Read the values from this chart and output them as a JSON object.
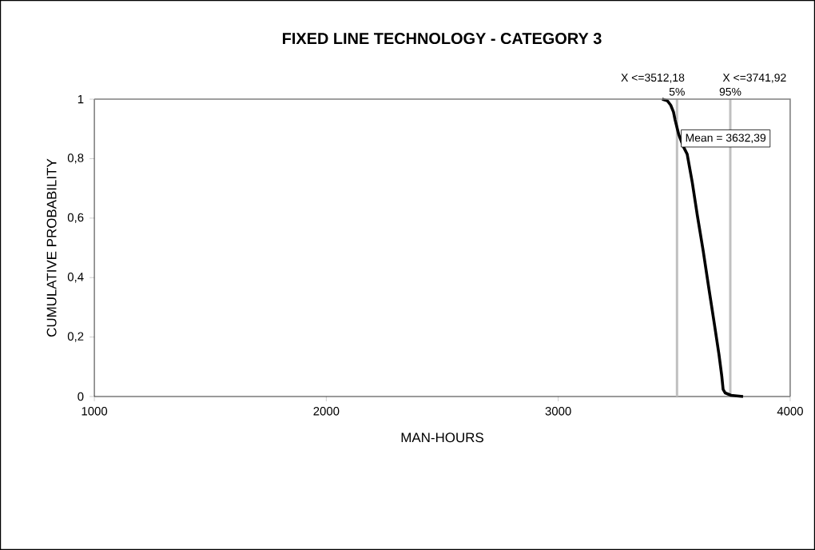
{
  "chart_data": {
    "type": "line",
    "title": "FIXED LINE TECHNOLOGY - CATEGORY 3",
    "xlabel": "MAN-HOURS",
    "ylabel": "CUMULATIVE PROBABILITY",
    "series": [
      {
        "color": "#000000",
        "x": [
          3448,
          3470,
          3485,
          3497,
          3504,
          3520,
          3540,
          3556,
          3578,
          3600,
          3625,
          3649,
          3672,
          3693,
          3705,
          3711,
          3720,
          3745,
          3770,
          3797
        ],
        "values": [
          1,
          0.995,
          0.98,
          0.957,
          0.93,
          0.88,
          0.84,
          0.815,
          0.72,
          0.608,
          0.49,
          0.366,
          0.25,
          0.142,
          0.07,
          0.024,
          0.012,
          0.004,
          0.002,
          0
        ]
      }
    ],
    "xlim": [
      1000,
      4000
    ],
    "ylim": [
      0,
      1
    ],
    "xticks": [
      1000,
      2000,
      3000,
      4000
    ],
    "yticks": [
      0,
      {
        "value": 0.2,
        "label": "0,2"
      },
      {
        "value": 0.4,
        "label": "0,4"
      },
      {
        "value": 0.6,
        "label": "0,6"
      },
      {
        "value": 0.8,
        "label": "0,8"
      },
      1
    ],
    "ref_lines": [
      {
        "axis": "x",
        "value": 3512.18,
        "label": "X <=3512,18",
        "color": "#c0c0c0"
      },
      {
        "axis": "x",
        "value": 3741.92,
        "label": "X <=3741,92",
        "color": "#c0c0c0"
      }
    ],
    "annotations": [
      "Mean = 3632,39",
      {
        "text": "5%",
        "x": 3512.18,
        "y": 1
      },
      {
        "text": "95%",
        "x": 3741.92,
        "y": 1
      }
    ],
    "grid": false,
    "line_style": "solid",
    "marker": "none"
  }
}
